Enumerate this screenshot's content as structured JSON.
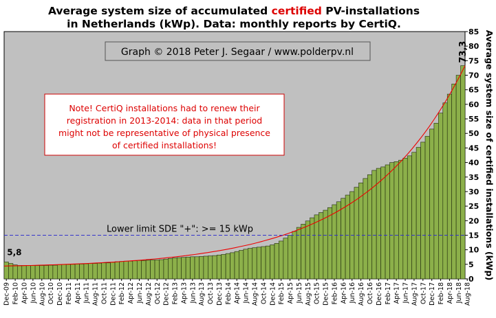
{
  "chart_data": {
    "type": "bar",
    "title": {
      "line1_before": "Average system size of accumulated ",
      "line1_highlight": "certified",
      "line1_after": " PV-installations",
      "line2": "in Netherlands (kWp). Data: monthly reports by CertiQ."
    },
    "ylabel": "Average system size of certified installations (kWp)",
    "ylim": [
      0,
      85
    ],
    "yticks": [
      "0",
      "5",
      "10",
      "15",
      "20",
      "25",
      "30",
      "35",
      "40",
      "45",
      "50",
      "55",
      "60",
      "65",
      "70",
      "75",
      "80",
      "85"
    ],
    "grid": false,
    "credit": "Graph © 2018 Peter J. Segaar / www.polderpv.nl",
    "note": [
      "Note! CertiQ installations had to renew their",
      "registration in 2013-2014:  data in that period",
      "might not be representative of physical presence",
      "of certified installations!"
    ],
    "reference_line": {
      "label": "Lower limit  SDE \"+\":    >=  15 kWp",
      "value": 15,
      "color": "#3333cc"
    },
    "first_label": "5,8",
    "last_label": "73,3",
    "colors": {
      "bar_fill": "#8cb04a",
      "bar_stroke": "#1f2a0c",
      "plot_bg": "#c0c0c0",
      "trend": "#ee0000",
      "reference": "#3333cc",
      "highlight_text": "#dd0000"
    },
    "series": [
      {
        "name": "",
        "values": [
          5.8,
          5.3,
          4.8,
          4.6,
          4.6,
          4.6,
          4.6,
          4.6,
          4.6,
          4.6,
          4.7,
          4.7,
          4.9,
          5.0,
          5.0,
          5.0,
          5.1,
          5.1,
          5.2,
          5.3,
          5.3,
          5.4,
          5.5,
          5.5,
          5.7,
          5.9,
          6.0,
          6.1,
          6.1,
          6.2,
          6.3,
          6.3,
          6.4,
          6.5,
          6.5,
          6.6,
          6.8,
          7.0,
          7.2,
          7.3,
          7.4,
          7.5,
          7.6,
          7.6,
          7.7,
          7.8,
          7.9,
          8.0,
          8.2,
          8.4,
          8.7,
          9.0,
          9.4,
          9.8,
          10.2,
          10.5,
          10.7,
          10.9,
          11.1,
          11.3,
          11.7,
          12.2,
          13.0,
          14.0,
          15.0,
          16.3,
          17.7,
          18.8,
          19.9,
          21.0,
          22.0,
          22.8,
          23.6,
          24.5,
          25.5,
          26.5,
          27.7,
          28.8,
          30.0,
          31.5,
          33.0,
          34.5,
          35.8,
          37.3,
          38.0,
          38.5,
          39.2,
          40.0,
          40.3,
          40.8,
          41.5,
          42.3,
          43.5,
          45.2,
          47.0,
          49.0,
          51.5,
          53.5,
          57.0,
          60.5,
          63.5,
          67.0,
          70.0,
          73.3
        ]
      }
    ],
    "xticklabels": [
      "Dec-09",
      "Feb-10",
      "Apr-10",
      "Jun-10",
      "Aug-10",
      "Oct-10",
      "Dec-10",
      "Feb-11",
      "Apr-11",
      "Jun-11",
      "Aug-11",
      "Oct-11",
      "Dec-11",
      "Feb-12",
      "Apr-12",
      "Jun-12",
      "Aug-12",
      "Oct-12",
      "Dec-12",
      "Feb-13",
      "Apr-13",
      "Jun-13",
      "Aug-13",
      "Oct-13",
      "Dec-13",
      "Feb-14",
      "Apr-14",
      "Jun-14",
      "Aug-14",
      "Oct-14",
      "Dec-14",
      "Feb-15",
      "Apr-15",
      "Jun-15",
      "Aug-15",
      "Oct-15",
      "Dec-15",
      "Feb-16",
      "Apr-16",
      "Jun-16",
      "Aug-16",
      "Oct-16",
      "Dec-16",
      "Feb-17",
      "Apr-17",
      "Jun-17",
      "Aug-17",
      "Oct-17",
      "Dec-17",
      "Feb-18",
      "Apr-18",
      "Jun-18",
      "Aug-18"
    ]
  }
}
